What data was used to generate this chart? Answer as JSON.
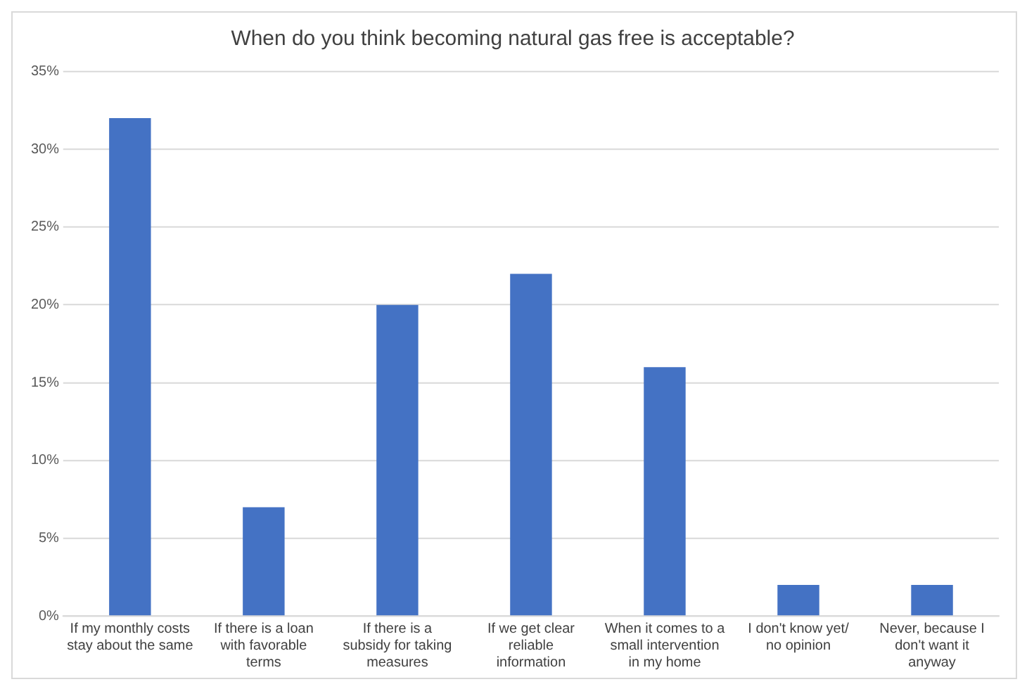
{
  "chart_data": {
    "type": "bar",
    "title": "When do you think becoming natural gas free is acceptable?",
    "categories": [
      "If my monthly costs stay about the same",
      "If there is a loan with favorable terms",
      "If there is a subsidy for taking measures",
      "If we get clear reliable information",
      "When it comes to a small intervention in my home",
      "I don't know yet/ no opinion",
      "Never, because I don't want it anyway"
    ],
    "values": [
      32,
      7,
      20,
      22,
      16,
      2,
      2
    ],
    "color": "#4472c4",
    "ylim": [
      0,
      35
    ],
    "yticks": [
      {
        "value": 0,
        "label": "0%"
      },
      {
        "value": 5,
        "label": "5%"
      },
      {
        "value": 10,
        "label": "10%"
      },
      {
        "value": 15,
        "label": "15%"
      },
      {
        "value": 20,
        "label": "20%"
      },
      {
        "value": 25,
        "label": "25%"
      },
      {
        "value": 30,
        "label": "30%"
      },
      {
        "value": 35,
        "label": "35%"
      }
    ],
    "grid": "y",
    "legend": false
  }
}
